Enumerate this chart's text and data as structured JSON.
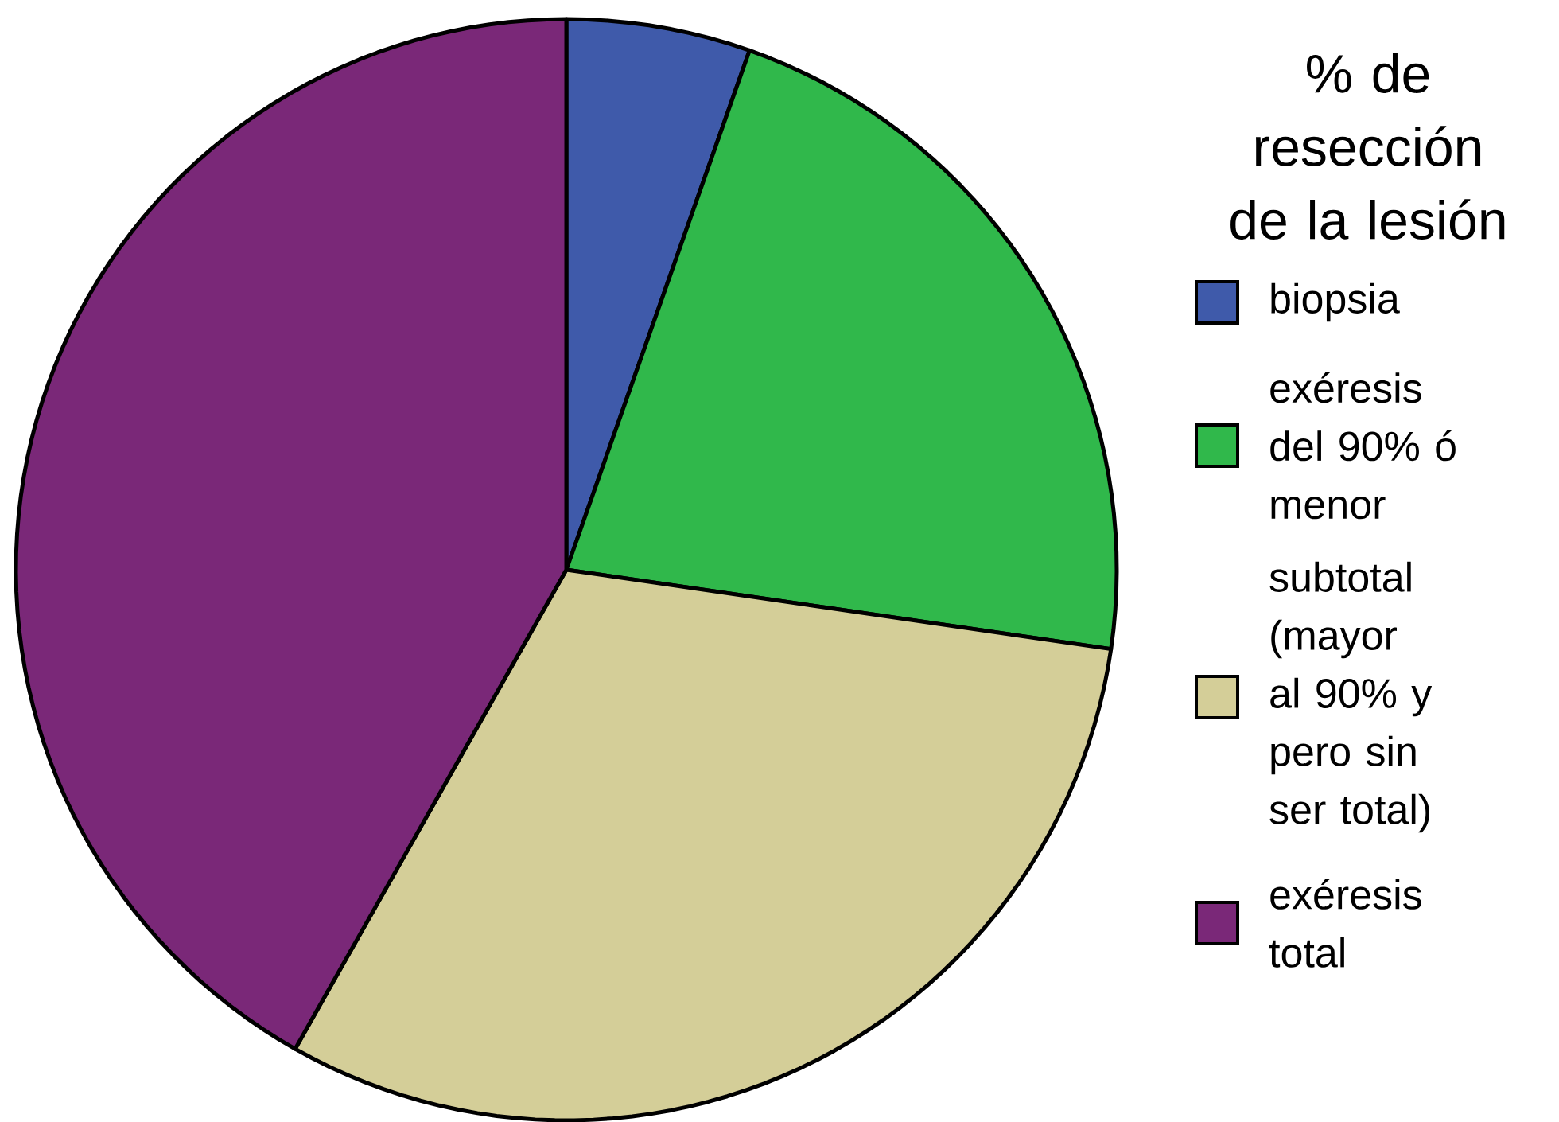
{
  "chart_data": {
    "type": "pie",
    "legend_title": "% de resección de la lesión",
    "legend": "right",
    "categories": [
      "biopsia",
      "exéresis del 90% ó menor",
      "subtotal (mayor al 90% y pero sin ser total)",
      "exéresis total"
    ],
    "values": [
      5.4,
      21.9,
      30.9,
      41.8
    ],
    "colors": [
      "#3f5aaa",
      "#30b84b",
      "#d4ce98",
      "#7a2878"
    ]
  }
}
